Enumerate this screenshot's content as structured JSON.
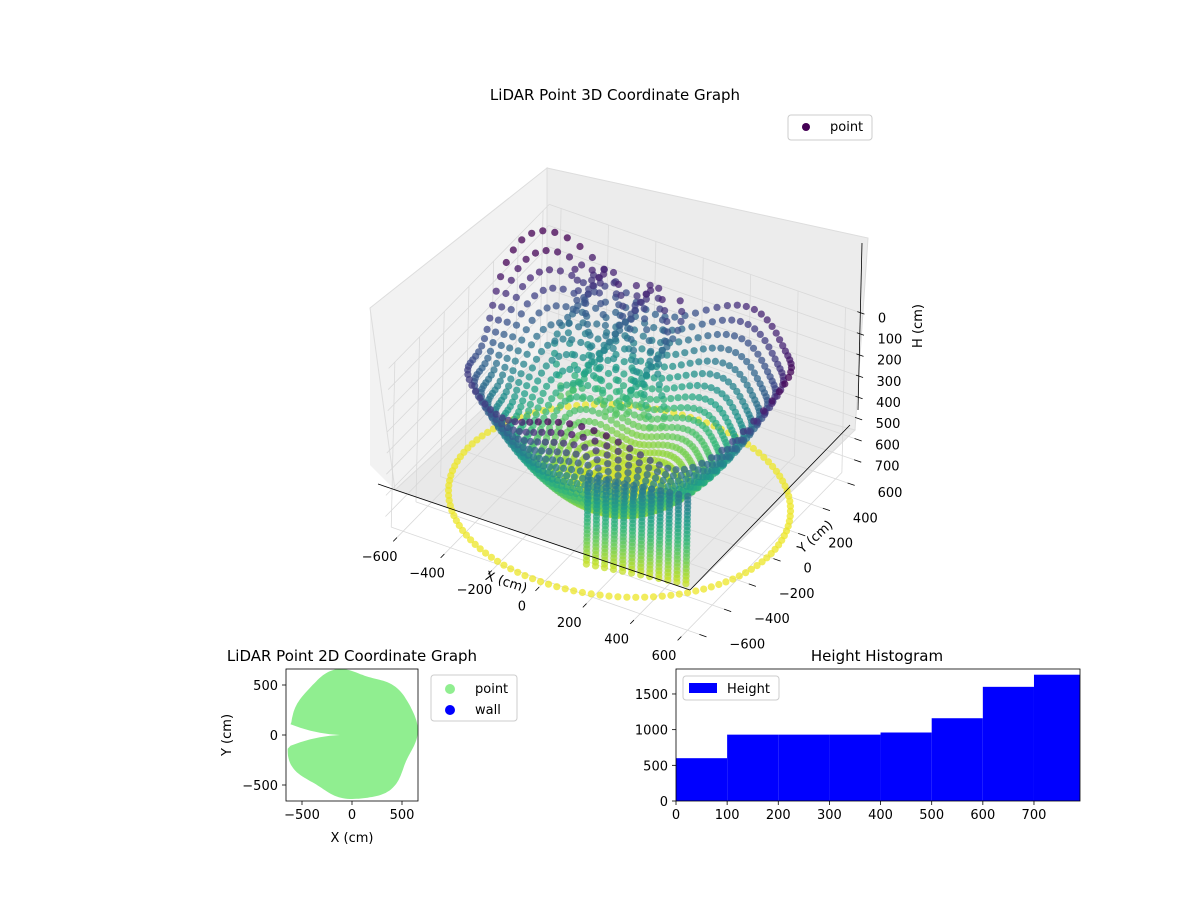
{
  "figure": {
    "colors": {
      "viridis_dark": "#440154",
      "viridis_mid": "#21918c",
      "viridis_light": "#fde725",
      "point_2d": "#90ee90",
      "wall_2d": "#0000ff",
      "hist_fill": "#0000ff"
    }
  },
  "chart_data": [
    {
      "type": "scatter",
      "title": "LiDAR Point 3D Coordinate Graph",
      "xlabel": "X (cm)",
      "ylabel": "Y (cm)",
      "zlabel": "H (cm)",
      "x_ticks": [
        "−600",
        "−400",
        "−200",
        "0",
        "200",
        "400",
        "600"
      ],
      "y_ticks": [
        "−600",
        "−400",
        "−200",
        "0",
        "200",
        "400",
        "600"
      ],
      "z_ticks": [
        "0",
        "100",
        "200",
        "300",
        "400",
        "500",
        "600",
        "700"
      ],
      "xlim": [
        -650,
        650
      ],
      "ylim": [
        -650,
        650
      ],
      "zlim": [
        0,
        780
      ],
      "z_inverted": true,
      "colormap": "viridis",
      "legend": {
        "position": "top-right",
        "entries": [
          {
            "label": "point"
          }
        ]
      },
      "grid": true
    },
    {
      "type": "scatter",
      "title": "LiDAR Point 2D Coordinate Graph",
      "xlabel": "X (cm)",
      "ylabel": "Y (cm)",
      "x_ticks": [
        "−500",
        "0",
        "500"
      ],
      "y_ticks": [
        "500",
        "0",
        "−500"
      ],
      "xlim": [
        -660,
        660
      ],
      "ylim": [
        -660,
        660
      ],
      "legend": {
        "position": "outside-right",
        "entries": [
          {
            "label": "point"
          },
          {
            "label": "wall"
          }
        ]
      },
      "grid": false
    },
    {
      "type": "bar",
      "title": "Height Histogram",
      "legend": {
        "position": "top-left",
        "entries": [
          {
            "label": "Height"
          }
        ]
      },
      "x_ticks": [
        "0",
        "100",
        "200",
        "300",
        "400",
        "500",
        "600",
        "700"
      ],
      "y_ticks": [
        "0",
        "500",
        "1000",
        "1500"
      ],
      "xlim": [
        0,
        790
      ],
      "ylim": [
        0,
        1850
      ],
      "bin_edges": [
        0,
        100,
        200,
        300,
        400,
        500,
        600,
        700,
        790
      ],
      "values": [
        600,
        930,
        930,
        930,
        960,
        1160,
        1600,
        1770
      ],
      "grid": false
    }
  ]
}
